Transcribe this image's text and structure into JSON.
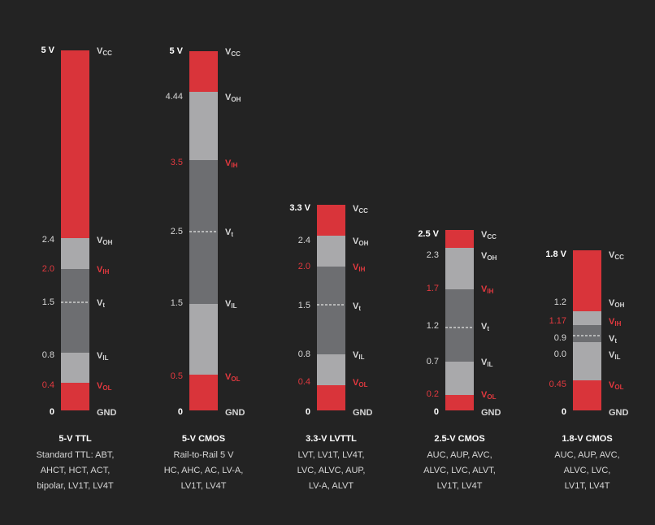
{
  "columns": [
    {
      "title": "5-V TTL",
      "description": [
        "Standard TTL: ABT,",
        "AHCT, HCT, ACT,",
        "bipolar, LV1T, LV4T"
      ],
      "levels": [
        {
          "value": "5 V",
          "signal": "V",
          "sub": "CC"
        },
        {
          "value": "2.4",
          "signal": "V",
          "sub": "OH"
        },
        {
          "value": "2.0",
          "signal": "V",
          "sub": "IH"
        },
        {
          "value": "1.5",
          "signal": "V",
          "sub": "t"
        },
        {
          "value": "0.8",
          "signal": "V",
          "sub": "IL"
        },
        {
          "value": "0.4",
          "signal": "V",
          "sub": "OL"
        },
        {
          "value": "0",
          "signal": "GND"
        }
      ]
    },
    {
      "title": "5-V CMOS",
      "description": [
        "Rail-to-Rail 5 V",
        "HC, AHC, AC, LV-A,",
        "LV1T, LV4T"
      ],
      "levels": [
        {
          "value": "5 V",
          "signal": "V",
          "sub": "CC"
        },
        {
          "value": "4.44",
          "signal": "V",
          "sub": "OH"
        },
        {
          "value": "3.5",
          "signal": "V",
          "sub": "IH"
        },
        {
          "value": "2.5",
          "signal": "V",
          "sub": "t"
        },
        {
          "value": "1.5",
          "signal": "V",
          "sub": "IL"
        },
        {
          "value": "0.5",
          "signal": "V",
          "sub": "OL"
        },
        {
          "value": "0",
          "signal": "GND"
        }
      ]
    },
    {
      "title": "3.3-V LVTTL",
      "description": [
        "LVT, LV1T, LV4T,",
        "LVC, ALVC, AUP,",
        "LV-A, ALVT"
      ],
      "levels": [
        {
          "value": "3.3 V",
          "signal": "V",
          "sub": "CC"
        },
        {
          "value": "2.4",
          "signal": "V",
          "sub": "OH"
        },
        {
          "value": "2.0",
          "signal": "V",
          "sub": "IH"
        },
        {
          "value": "1.5",
          "signal": "V",
          "sub": "t"
        },
        {
          "value": "0.8",
          "signal": "V",
          "sub": "IL"
        },
        {
          "value": "0.4",
          "signal": "V",
          "sub": "OL"
        },
        {
          "value": "0",
          "signal": "GND"
        }
      ]
    },
    {
      "title": "2.5-V CMOS",
      "description": [
        "AUC, AUP, AVC,",
        "ALVC, LVC, ALVT,",
        "LV1T, LV4T"
      ],
      "levels": [
        {
          "value": "2.5 V",
          "signal": "V",
          "sub": "CC"
        },
        {
          "value": "2.3",
          "signal": "V",
          "sub": "OH"
        },
        {
          "value": "1.7",
          "signal": "V",
          "sub": "IH"
        },
        {
          "value": "1.2",
          "signal": "V",
          "sub": "t"
        },
        {
          "value": "0.7",
          "signal": "V",
          "sub": "IL"
        },
        {
          "value": "0.2",
          "signal": "V",
          "sub": "OL"
        },
        {
          "value": "0",
          "signal": "GND"
        }
      ]
    },
    {
      "title": "1.8-V CMOS",
      "description": [
        "AUC, AUP, AVC,",
        "ALVC, LVC,",
        "LV1T, LV4T"
      ],
      "levels": [
        {
          "value": "1.8 V",
          "signal": "V",
          "sub": "CC"
        },
        {
          "value": "1.2",
          "signal": "V",
          "sub": "OH"
        },
        {
          "value": "1.17",
          "signal": "V",
          "sub": "IH"
        },
        {
          "value": "0.9",
          "signal": "V",
          "sub": "t"
        },
        {
          "value": "0.0",
          "signal": "V",
          "sub": "IL"
        },
        {
          "value": "0.45",
          "signal": "V",
          "sub": "OL"
        },
        {
          "value": "0",
          "signal": "GND"
        }
      ]
    }
  ]
}
